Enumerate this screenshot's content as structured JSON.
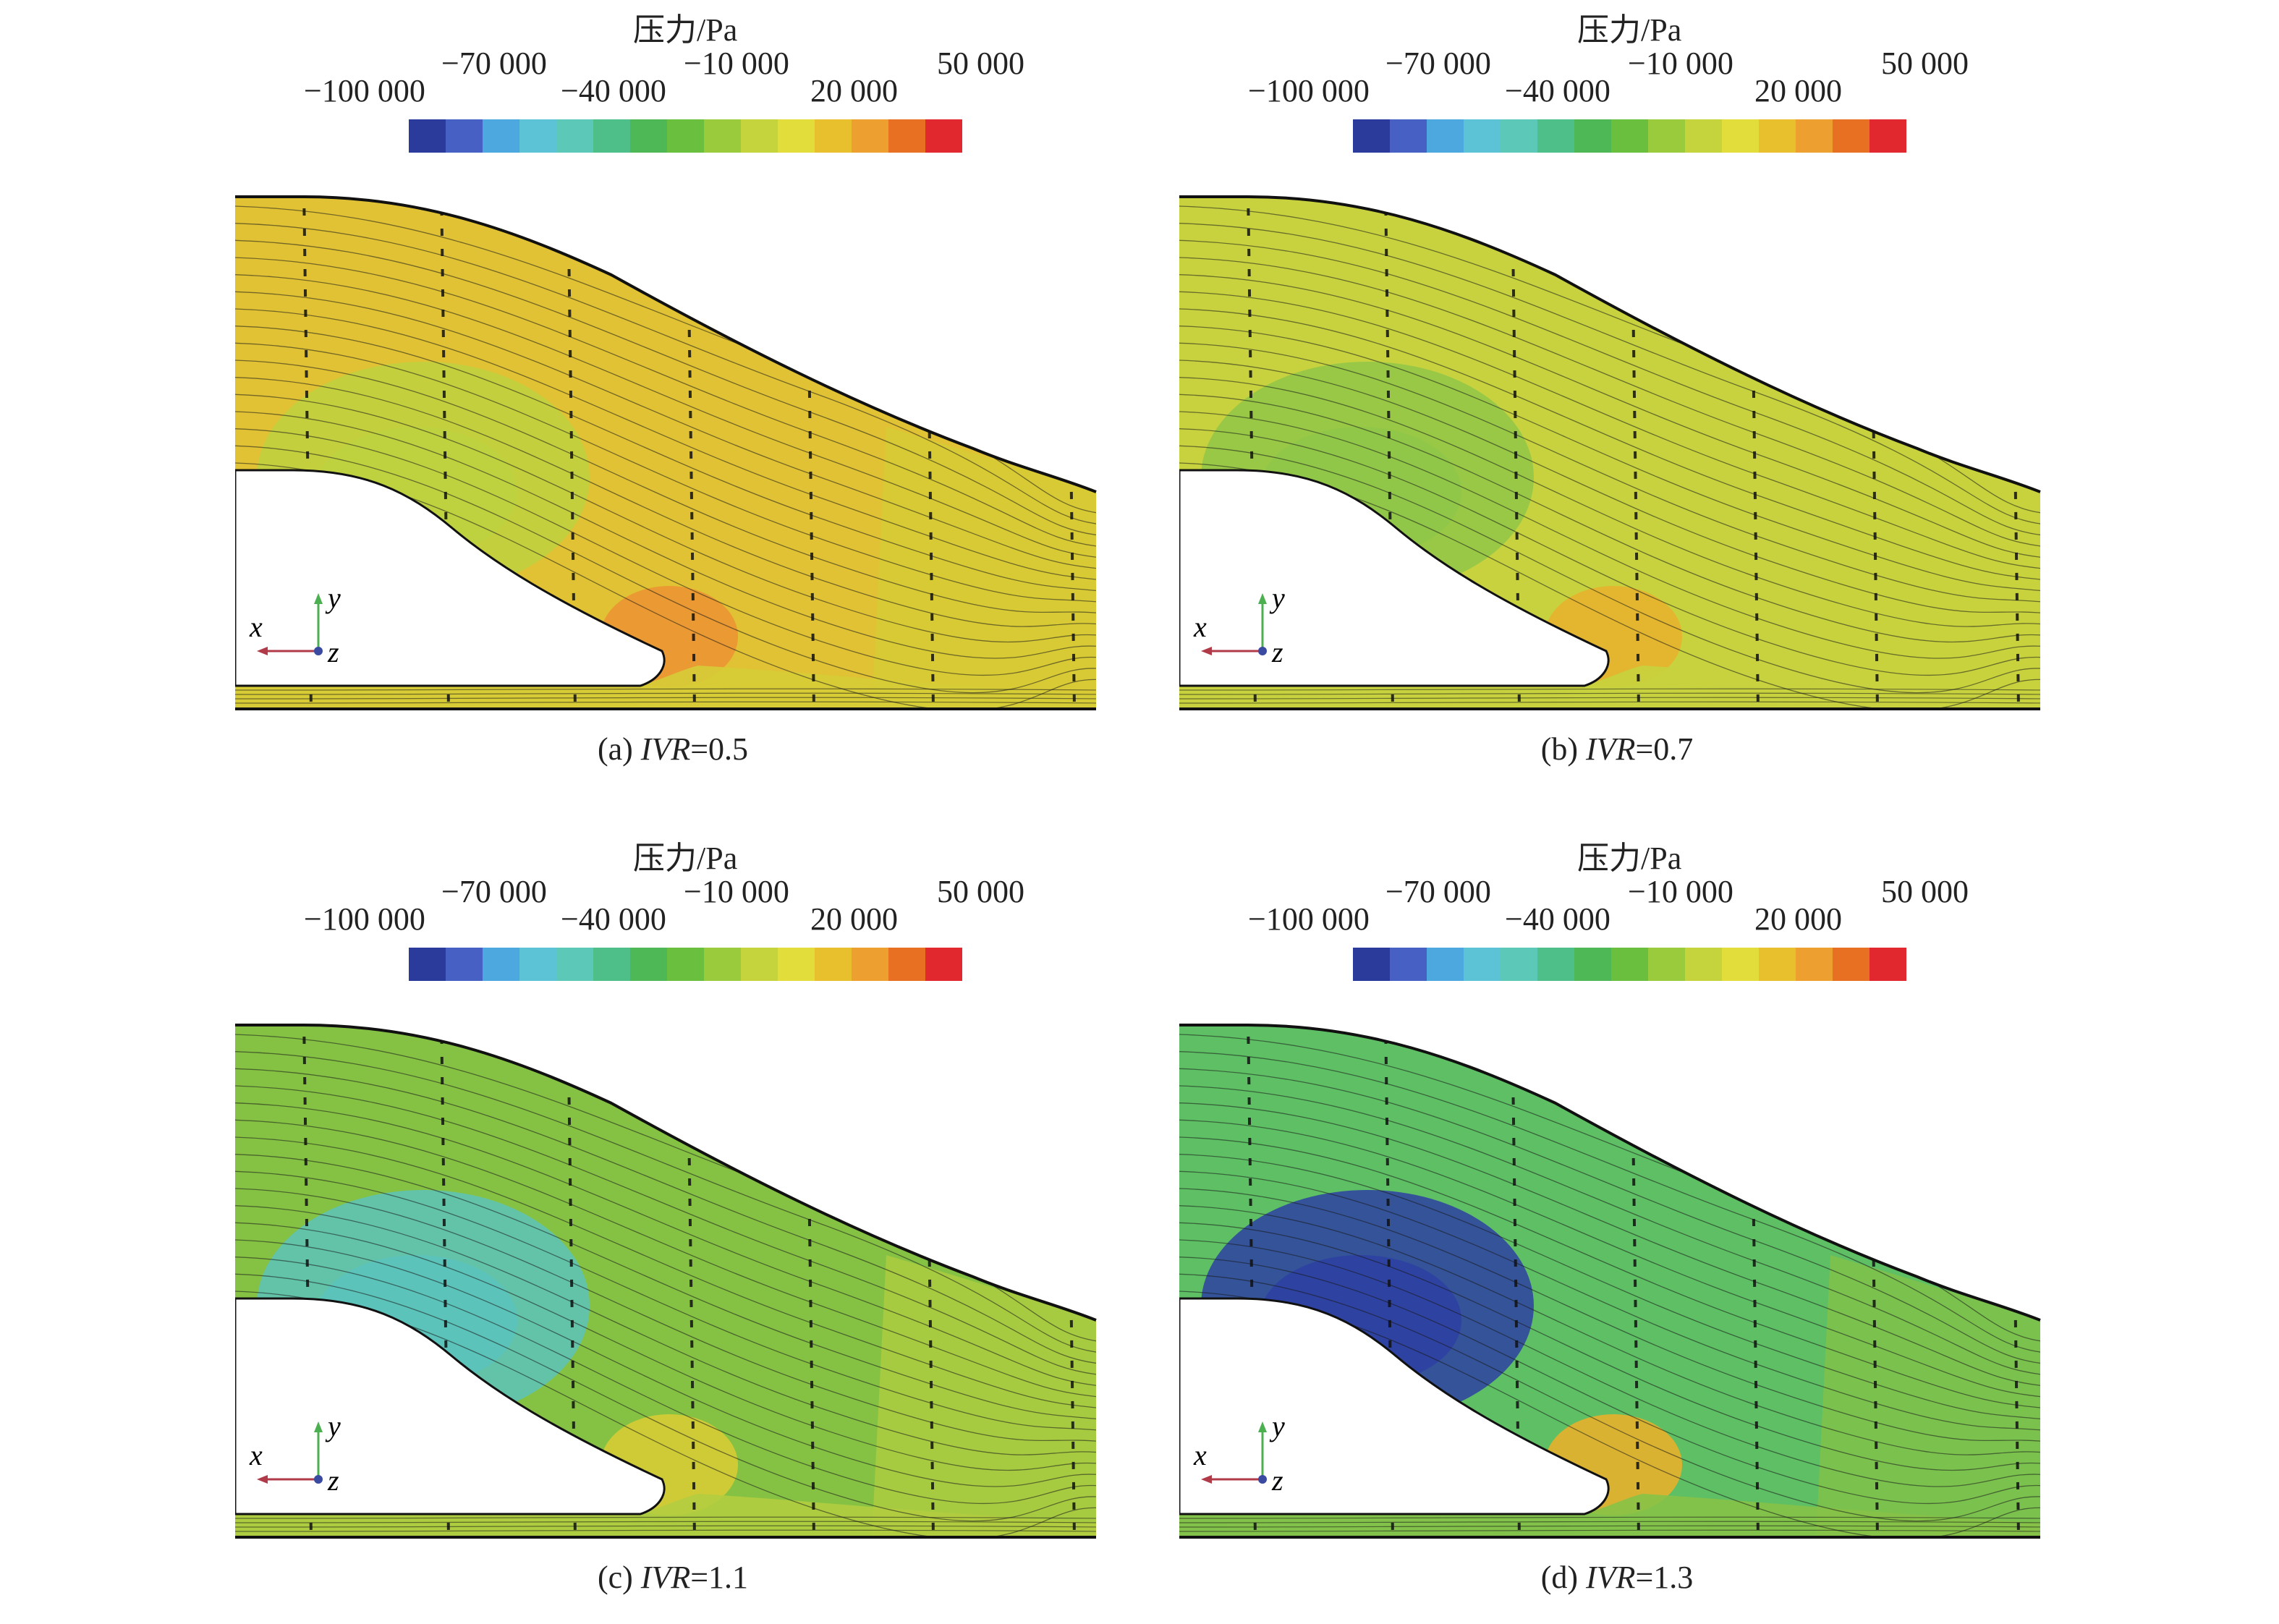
{
  "colorbar": {
    "title": "压力/Pa",
    "ticks": [
      "−100 000",
      "−70 000",
      "−40 000",
      "−10 000",
      "20 000",
      "50 000"
    ],
    "colors": [
      "#2a3b9c",
      "#4660c4",
      "#4ea8e0",
      "#5cc2d6",
      "#5cc8b8",
      "#4fbf8a",
      "#4fb856",
      "#6bbf3e",
      "#9acb3c",
      "#c5d43c",
      "#e2dd3a",
      "#e8c02e",
      "#eda030",
      "#e87022",
      "#e0282e"
    ]
  },
  "axes": {
    "x": "x",
    "y": "y",
    "z": "z"
  },
  "panels": [
    {
      "id": "a",
      "label": "(a)",
      "param": "IVR",
      "value": "=0.5",
      "fill": "#e0c234",
      "zone_fill": "#bed140",
      "hot_fill": "#ec9532",
      "lower_fill": "#d6cc36"
    },
    {
      "id": "b",
      "label": "(b)",
      "param": "IVR",
      "value": "=0.7",
      "fill": "#c7d23e",
      "zone_fill": "#8fc748",
      "hot_fill": "#e7b32e",
      "lower_fill": "#c7d23e"
    },
    {
      "id": "c",
      "label": "(c)",
      "param": "IVR",
      "value": "=1.1",
      "fill": "#85c244",
      "zone_fill": "#5cc3bb",
      "hot_fill": "#d6cc36",
      "lower_fill": "#b2cd3f"
    },
    {
      "id": "d",
      "label": "(d)",
      "param": "IVR",
      "value": "=1.3",
      "fill": "#5ebf64",
      "zone_fill": "#2d40a2",
      "hot_fill": "#e8b02c",
      "lower_fill": "#86c247"
    }
  ]
}
